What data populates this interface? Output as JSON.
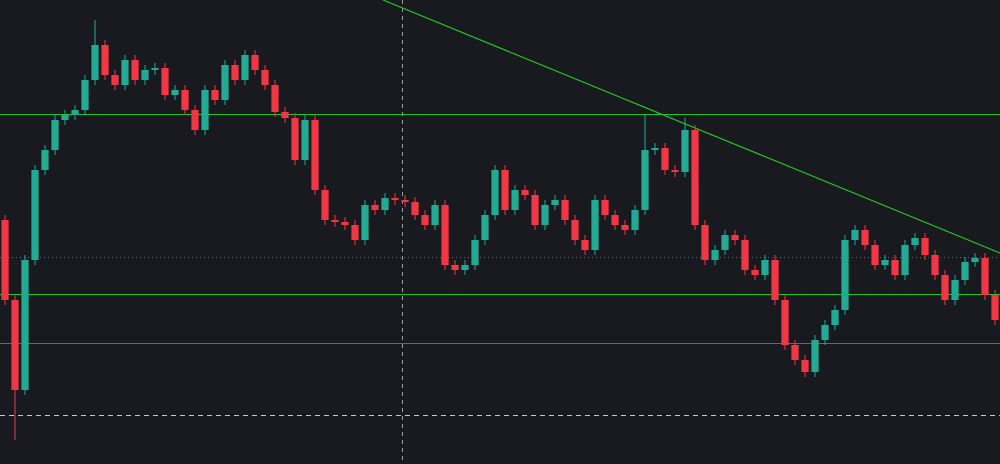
{
  "chart_data": {
    "type": "candlestick",
    "ylim": [
      0,
      464
    ],
    "up_color": "#22ab94",
    "down_color": "#f23645",
    "open": [
      244,
      164,
      74,
      204,
      294,
      314,
      344,
      349,
      354,
      384,
      419,
      389,
      379,
      404,
      384,
      394,
      396,
      369,
      374,
      354,
      334,
      374,
      364,
      399,
      384,
      409,
      394,
      379,
      352,
      346,
      304,
      344,
      274,
      244,
      242,
      239,
      224,
      259,
      254,
      266,
      264,
      262,
      249,
      239,
      259,
      199,
      194,
      199,
      224,
      249,
      294,
      254,
      274,
      269,
      239,
      259,
      264,
      244,
      224,
      214,
      264,
      249,
      239,
      234,
      254,
      314,
      316,
      294,
      292,
      334,
      239,
      204,
      214,
      229,
      224,
      194,
      189,
      204,
      164,
      119,
      104,
      92,
      124,
      139,
      154,
      224,
      234,
      219,
      199,
      204,
      189,
      219,
      226,
      209,
      189,
      164,
      184,
      202,
      206,
      169
    ],
    "high": [
      249,
      169,
      209,
      299,
      319,
      349,
      354,
      359,
      389,
      444,
      424,
      394,
      409,
      409,
      399,
      401,
      401,
      379,
      379,
      359,
      379,
      379,
      404,
      404,
      414,
      414,
      399,
      384,
      357,
      351,
      349,
      349,
      279,
      249,
      247,
      244,
      264,
      264,
      271,
      271,
      269,
      267,
      254,
      264,
      264,
      204,
      204,
      229,
      254,
      299,
      299,
      279,
      279,
      274,
      264,
      269,
      269,
      249,
      229,
      269,
      269,
      254,
      244,
      259,
      349,
      321,
      321,
      299,
      346,
      339,
      244,
      219,
      234,
      234,
      229,
      199,
      209,
      209,
      169,
      124,
      109,
      129,
      144,
      159,
      229,
      239,
      239,
      224,
      209,
      209,
      224,
      231,
      231,
      214,
      194,
      189,
      207,
      211,
      211,
      174
    ],
    "low": [
      159,
      24,
      69,
      199,
      289,
      309,
      339,
      344,
      349,
      379,
      384,
      374,
      374,
      379,
      379,
      389,
      364,
      364,
      349,
      329,
      329,
      359,
      359,
      379,
      379,
      389,
      374,
      347,
      341,
      299,
      299,
      269,
      239,
      237,
      234,
      219,
      219,
      249,
      249,
      259,
      257,
      244,
      234,
      234,
      194,
      189,
      189,
      194,
      219,
      244,
      249,
      249,
      264,
      234,
      234,
      254,
      239,
      219,
      209,
      209,
      244,
      234,
      229,
      229,
      249,
      309,
      289,
      287,
      287,
      234,
      199,
      199,
      209,
      219,
      189,
      184,
      184,
      159,
      114,
      99,
      87,
      87,
      119,
      134,
      149,
      219,
      214,
      194,
      194,
      184,
      184,
      214,
      204,
      184,
      159,
      159,
      179,
      197,
      164,
      139
    ],
    "close": [
      164,
      74,
      204,
      294,
      314,
      344,
      349,
      354,
      384,
      419,
      389,
      379,
      404,
      384,
      394,
      396,
      369,
      374,
      354,
      334,
      374,
      364,
      399,
      384,
      409,
      394,
      379,
      352,
      346,
      304,
      344,
      274,
      244,
      242,
      239,
      224,
      259,
      254,
      266,
      264,
      262,
      249,
      239,
      259,
      199,
      194,
      199,
      224,
      249,
      294,
      254,
      274,
      269,
      239,
      259,
      264,
      244,
      224,
      214,
      264,
      249,
      239,
      234,
      254,
      314,
      316,
      294,
      292,
      334,
      239,
      204,
      214,
      229,
      224,
      194,
      189,
      204,
      164,
      119,
      104,
      92,
      124,
      139,
      154,
      224,
      234,
      219,
      199,
      204,
      189,
      219,
      226,
      209,
      189,
      164,
      184,
      202,
      206,
      169,
      144
    ],
    "hlines": [
      {
        "value": 350,
        "color": "#22c422",
        "style": "solid"
      },
      {
        "value": 207,
        "color": "#d93838",
        "style": "dotted"
      },
      {
        "value": 170,
        "color": "#22c422",
        "style": "solid"
      },
      {
        "value": 121,
        "color": "#d93838",
        "style": "solid"
      },
      {
        "value": 49,
        "color": "#c8c8c8",
        "style": "dashed"
      }
    ],
    "trendline": {
      "x": [
        37.8,
        99.5
      ],
      "y": [
        464,
        211
      ],
      "color": "#22c422"
    }
  }
}
